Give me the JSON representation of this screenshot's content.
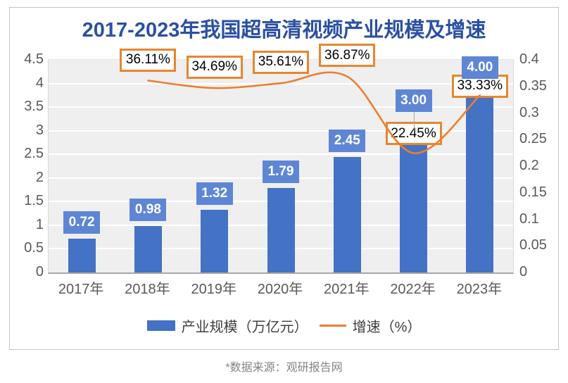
{
  "title": "2017-2023年我国超高清视频产业规模及增速",
  "footer": "*数据来源：观研报告网",
  "legend": [
    {
      "label": "产业规模（万亿元）",
      "swatch": "bar-swatch",
      "color": "#4472c4"
    },
    {
      "label": "增速（%）",
      "swatch": "line-swatch",
      "color": "#ed7d31"
    }
  ],
  "colors": {
    "bar": "#4472c4",
    "bar_label_bg": "#5e86d5",
    "line": "#ed7d31",
    "line_label_border": "#e8862e",
    "title": "#2b50a2",
    "axis_text": "#595959",
    "plot_bg": "#efefef"
  },
  "chart_data": {
    "type": "bar",
    "subtype": "bar+line dual-axis combo",
    "title": "2017-2023年我国超高清视频产业规模及增速",
    "categories": [
      "2017年",
      "2018年",
      "2019年",
      "2020年",
      "2021年",
      "2022年",
      "2023年"
    ],
    "series": [
      {
        "name": "产业规模（万亿元）",
        "type": "bar",
        "axis": "left",
        "values": [
          0.72,
          0.98,
          1.32,
          1.79,
          2.45,
          3.0,
          4.0
        ],
        "labels": [
          "0.72",
          "0.98",
          "1.32",
          "1.79",
          "2.45",
          "3.00",
          "4.00"
        ],
        "color": "#4472c4"
      },
      {
        "name": "增速（%）",
        "type": "line",
        "axis": "right",
        "smooth": true,
        "x_indices": [
          1,
          2,
          3,
          4,
          5,
          6
        ],
        "values": [
          0.3611,
          0.3469,
          0.3561,
          0.3687,
          0.2245,
          0.3333
        ],
        "labels": [
          "36.11%",
          "34.69%",
          "35.61%",
          "36.87%",
          "22.45%",
          "33.33%"
        ],
        "color": "#ed7d31"
      }
    ],
    "left_axis": {
      "min": 0,
      "max": 4.5,
      "step": 0.5,
      "ticks": [
        "4.5",
        "4",
        "3.5",
        "3",
        "2.5",
        "2",
        "1.5",
        "1",
        "0.5",
        "0"
      ]
    },
    "right_axis": {
      "min": 0,
      "max": 0.4,
      "step": 0.05,
      "ticks": [
        "0.4",
        "0.35",
        "0.3",
        "0.25",
        "0.2",
        "0.15",
        "0.1",
        "0.05",
        "0"
      ]
    },
    "grid": true,
    "legend_position": "bottom",
    "label_dy": [
      29,
      30,
      30,
      30,
      28,
      13
    ]
  }
}
